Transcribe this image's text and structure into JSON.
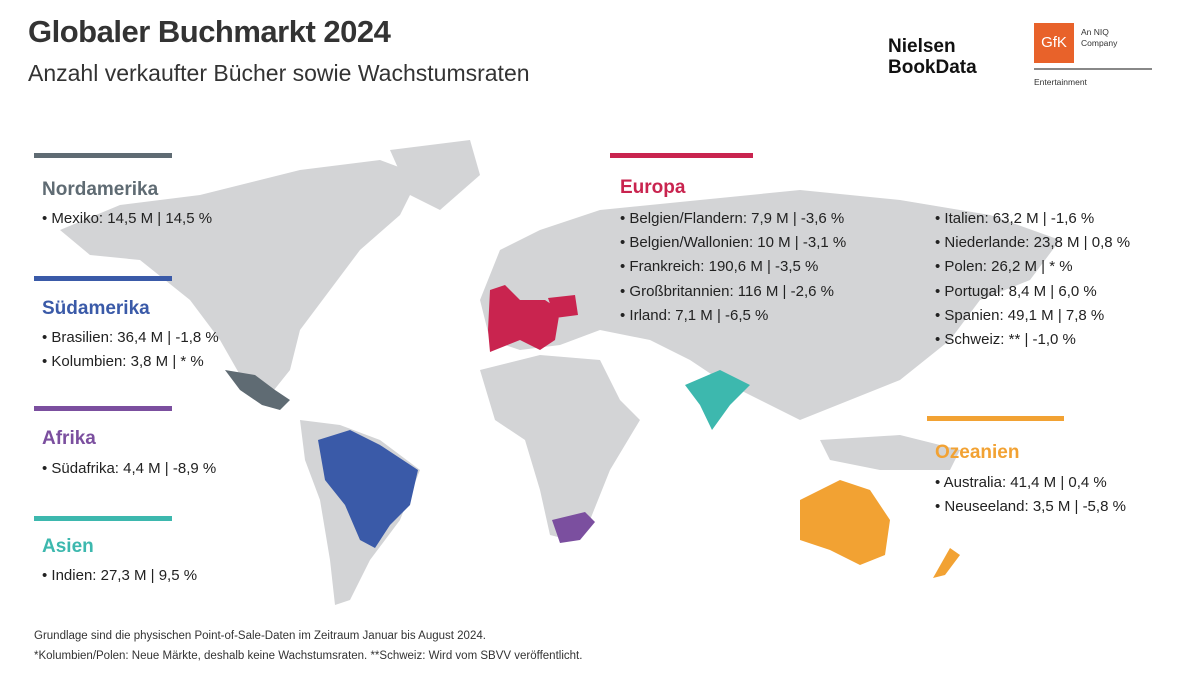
{
  "header": {
    "title": "Globaler Buchmarkt 2024",
    "subtitle": "Anzahl verkaufter Bücher sowie Wachstumsraten"
  },
  "logos": {
    "nielsen_line1": "Nielsen",
    "nielsen_line2": "BookData",
    "gfk": "GfK",
    "gfk_tagline_1": "An NIQ",
    "gfk_tagline_2": "Company",
    "gfk_division": "Entertainment"
  },
  "colors": {
    "nordamerika": "#5f6b73",
    "suedamerika": "#3a5aa8",
    "afrika": "#7b4f9f",
    "asien": "#3db8ae",
    "europa": "#c9244f",
    "ozeanien": "#f2a233",
    "land": "#d3d4d6"
  },
  "regions": {
    "nordamerika": {
      "name": "Nordamerika",
      "items": [
        "Mexiko: 14,5 M | 14,5 %"
      ]
    },
    "suedamerika": {
      "name": "Südamerika",
      "items": [
        "Brasilien: 36,4 M | -1,8 %",
        "Kolumbien: 3,8 M | * %"
      ]
    },
    "afrika": {
      "name": "Afrika",
      "items": [
        "Südafrika: 4,4 M | -8,9 %"
      ]
    },
    "asien": {
      "name": "Asien",
      "items": [
        "Indien: 27,3 M | 9,5 %"
      ]
    },
    "europa": {
      "name": "Europa",
      "items": [
        "Belgien/Flandern: 7,9 M | -3,6 %",
        "Belgien/Wallonien: 10 M | -3,1 %",
        "Frankreich: 190,6 M | -3,5 %",
        "Großbritannien: 116 M | -2,6 %",
        "Irland: 7,1 M | -6,5 %",
        "Italien: 63,2 M | -1,6 %",
        "Niederlande: 23,8 M | 0,8 %",
        "Polen: 26,2 M | * %",
        "Portugal: 8,4 M | 6,0 %",
        "Spanien: 49,1 M | 7,8 %",
        "Schweiz: ** | -1,0 %"
      ]
    },
    "ozeanien": {
      "name": "Ozeanien",
      "items": [
        "Australia: 41,4 M | 0,4 %",
        "Neuseeland: 3,5 M | -5,8 %"
      ]
    }
  },
  "footer": {
    "line1": "Grundlage sind die physischen Point-of-Sale-Daten im Zeitraum Januar bis August 2024.",
    "line2": "*Kolumbien/Polen: Neue Märkte, deshalb keine Wachstumsraten. **Schweiz: Wird vom SBVV veröffentlicht."
  }
}
